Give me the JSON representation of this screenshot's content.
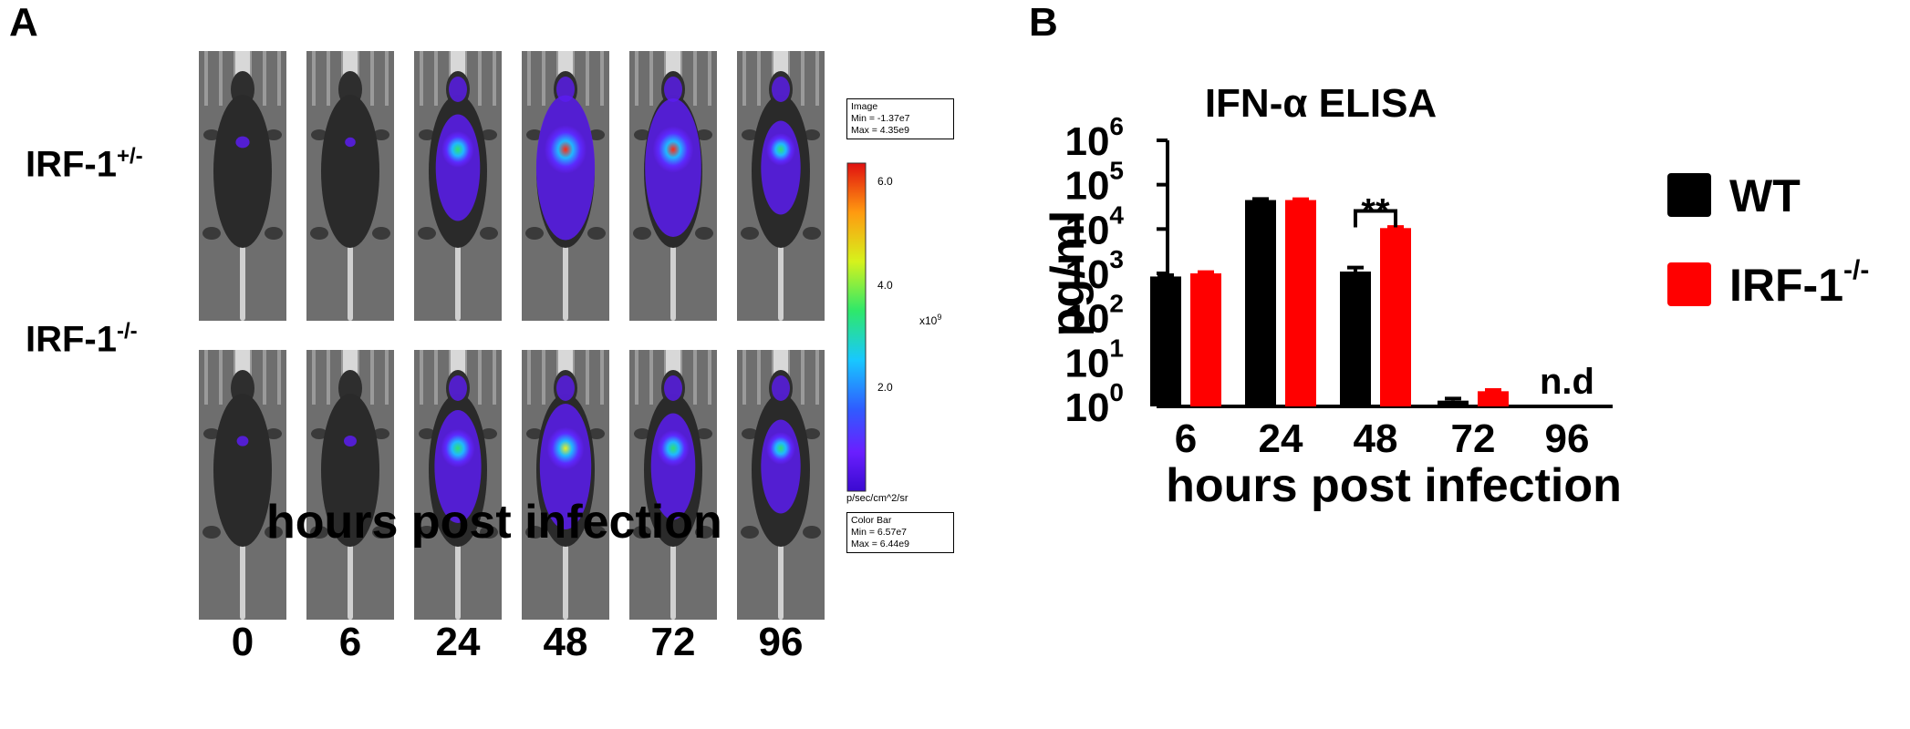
{
  "panel_a": {
    "letter": "A",
    "row_labels": [
      {
        "base": "IRF-1",
        "sup": "+/-"
      },
      {
        "base": "IRF-1",
        "sup": "-/-"
      }
    ],
    "timepoints": [
      "0",
      "6",
      "24",
      "48",
      "72",
      "96"
    ],
    "xlabel": "hours post infection",
    "signal_levels": {
      "het": [
        0.12,
        0.06,
        0.55,
        0.85,
        0.8,
        0.45
      ],
      "ko": [
        0.08,
        0.1,
        0.6,
        0.7,
        0.55,
        0.45
      ]
    },
    "colorbar": {
      "image_title": "Image",
      "image_min": "Min = -1.37e7",
      "image_max": "Max = 4.35e9",
      "ticks": [
        "6.0",
        "4.0",
        "2.0"
      ],
      "scale": "x10",
      "scale_exp": "9",
      "units": "p/sec/cm^2/sr",
      "bar_title": "Color Bar",
      "bar_min": "Min = 6.57e7",
      "bar_max": "Max = 6.44e9"
    }
  },
  "panel_b": {
    "letter": "B"
  },
  "chart_data": {
    "type": "bar",
    "title": "IFN-α ELISA",
    "xlabel": "hours post infection",
    "ylabel": "pg/ml",
    "yscale": "log",
    "ylim": [
      1,
      1000000
    ],
    "yticks": [
      {
        "base": "10",
        "exp": "0"
      },
      {
        "base": "10",
        "exp": "1"
      },
      {
        "base": "10",
        "exp": "2"
      },
      {
        "base": "10",
        "exp": "3"
      },
      {
        "base": "10",
        "exp": "4"
      },
      {
        "base": "10",
        "exp": "5"
      },
      {
        "base": "10",
        "exp": "6"
      }
    ],
    "categories": [
      "6",
      "24",
      "48",
      "72",
      "96"
    ],
    "series": [
      {
        "name": "WT",
        "legend_sup": "",
        "color": "#000000",
        "values": [
          850,
          45000,
          1100,
          1.35,
          null
        ],
        "errors": [
          60,
          2500,
          250,
          0.15,
          null
        ]
      },
      {
        "name": "IRF-1",
        "legend_sup": "-/-",
        "color": "#ff0000",
        "values": [
          1000,
          45000,
          10500,
          2.2,
          null
        ],
        "errors": [
          70,
          2000,
          600,
          0.15,
          null
        ]
      }
    ],
    "annotations": [
      {
        "text": "**",
        "category": "48"
      },
      {
        "text": "n.d",
        "category": "96"
      }
    ]
  }
}
